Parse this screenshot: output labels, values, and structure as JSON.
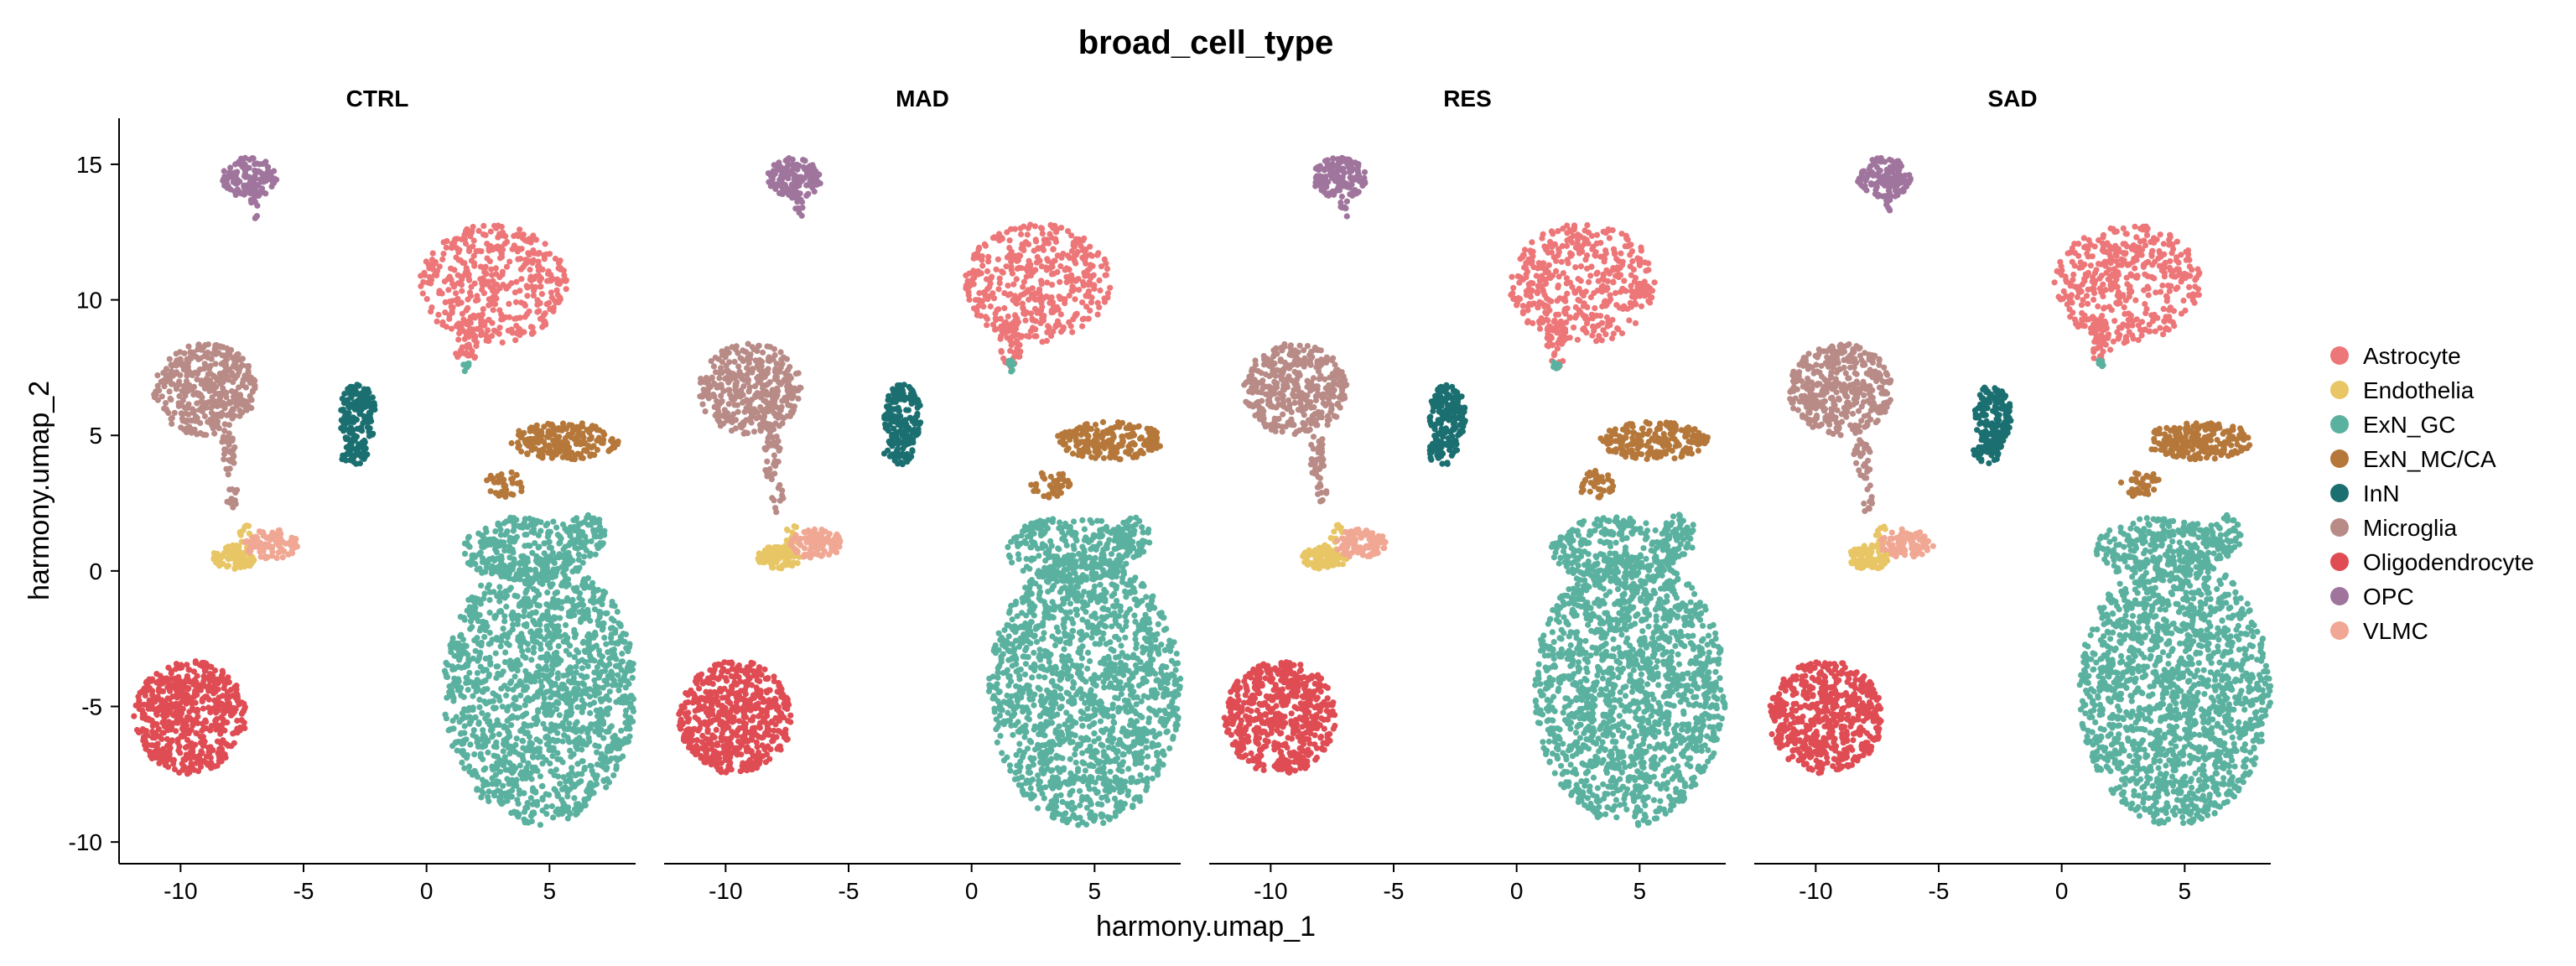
{
  "chart_data": {
    "type": "scatter",
    "title": "broad_cell_type",
    "xlabel": "harmony.umap_1",
    "ylabel": "harmony.umap_2",
    "xlim": [
      -12.5,
      8.5
    ],
    "ylim": [
      -10.8,
      16.7
    ],
    "x_ticks": [
      -10,
      -5,
      0,
      5
    ],
    "x_tick_labels": [
      "-10",
      "-5",
      "0",
      "5"
    ],
    "y_ticks": [
      -10,
      -5,
      0,
      5,
      10,
      15
    ],
    "y_tick_labels": [
      "-10",
      "-5",
      "0",
      "5",
      "10",
      "15"
    ],
    "grid": false,
    "legend_position": "right",
    "panels": [
      "CTRL",
      "MAD",
      "RES",
      "SAD"
    ],
    "series": [
      {
        "name": "Astrocyte",
        "color": "#ED7678",
        "clusters": [
          {
            "cx": 2.7,
            "cy": 10.6,
            "rx": 3.0,
            "ry": 2.2,
            "n": 420
          },
          {
            "cx": 1.6,
            "cy": 8.4,
            "rx": 0.45,
            "ry": 0.9,
            "n": 40
          }
        ]
      },
      {
        "name": "Endothelia",
        "color": "#E8C665",
        "clusters": [
          {
            "cx": -7.8,
            "cy": 0.5,
            "rx": 0.9,
            "ry": 0.45,
            "n": 90
          },
          {
            "cx": -7.3,
            "cy": 1.3,
            "rx": 0.3,
            "ry": 0.4,
            "n": 12
          }
        ]
      },
      {
        "name": "ExN_GC",
        "color": "#5BB19F",
        "clusters": [
          {
            "cx": 4.6,
            "cy": -4.4,
            "rx": 3.9,
            "ry": 5.0,
            "n": 1500
          },
          {
            "cx": 4.0,
            "cy": 0.8,
            "rx": 2.6,
            "ry": 1.2,
            "n": 260
          },
          {
            "cx": 6.5,
            "cy": 1.3,
            "rx": 0.8,
            "ry": 0.8,
            "n": 60
          },
          {
            "cx": 1.6,
            "cy": 7.6,
            "rx": 0.15,
            "ry": 0.25,
            "n": 8
          }
        ]
      },
      {
        "name": "ExN_MC/CA",
        "color": "#B5783A",
        "clusters": [
          {
            "cx": 5.6,
            "cy": 4.8,
            "rx": 2.2,
            "ry": 0.7,
            "n": 200
          },
          {
            "cx": 3.2,
            "cy": 3.2,
            "rx": 0.8,
            "ry": 0.5,
            "n": 40
          }
        ]
      },
      {
        "name": "InN",
        "color": "#1B6F70",
        "clusters": [
          {
            "cx": -2.8,
            "cy": 5.7,
            "rx": 0.75,
            "ry": 1.2,
            "n": 150
          },
          {
            "cx": -3.0,
            "cy": 4.4,
            "rx": 0.6,
            "ry": 0.5,
            "n": 40
          }
        ]
      },
      {
        "name": "Microglia",
        "color": "#B88B87",
        "clusters": [
          {
            "cx": -9.0,
            "cy": 6.7,
            "rx": 2.1,
            "ry": 1.7,
            "n": 380
          },
          {
            "cx": -8.1,
            "cy": 4.2,
            "rx": 0.35,
            "ry": 0.9,
            "n": 30
          },
          {
            "cx": -7.9,
            "cy": 2.7,
            "rx": 0.25,
            "ry": 0.6,
            "n": 10
          }
        ]
      },
      {
        "name": "Oligodendrocyte",
        "color": "#DF4C53",
        "clusters": [
          {
            "cx": -9.6,
            "cy": -5.4,
            "rx": 2.3,
            "ry": 2.1,
            "n": 560
          }
        ]
      },
      {
        "name": "OPC",
        "color": "#A0759D",
        "clusters": [
          {
            "cx": -7.2,
            "cy": 14.5,
            "rx": 1.1,
            "ry": 0.75,
            "n": 140
          },
          {
            "cx": -7.0,
            "cy": 13.4,
            "rx": 0.2,
            "ry": 0.4,
            "n": 8
          }
        ]
      },
      {
        "name": "VLMC",
        "color": "#F0A793",
        "clusters": [
          {
            "cx": -6.3,
            "cy": 1.0,
            "rx": 1.1,
            "ry": 0.55,
            "n": 90
          }
        ]
      }
    ]
  }
}
